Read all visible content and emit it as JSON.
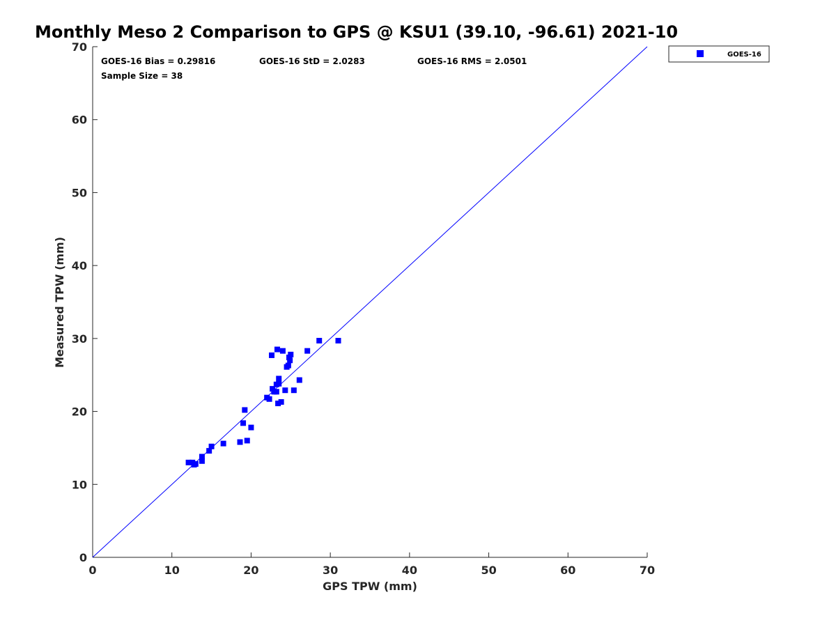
{
  "chart_data": {
    "type": "scatter",
    "title": "Monthly Meso 2 Comparison to GPS @ KSU1 (39.10, -96.61) 2021-10",
    "xlabel": "GPS TPW (mm)",
    "ylabel": "Measured TPW (mm)",
    "xlim": [
      0,
      70
    ],
    "ylim": [
      0,
      70
    ],
    "xticks": [
      0,
      10,
      20,
      30,
      40,
      50,
      60,
      70
    ],
    "yticks": [
      0,
      10,
      20,
      30,
      40,
      50,
      60,
      70
    ],
    "grid": false,
    "legend_position": "top-right outside plot",
    "stats": {
      "bias": "GOES-16 Bias = 0.29816",
      "std": "GOES-16 StD = 2.0283",
      "rms": "GOES-16 RMS = 2.0501",
      "sample": "Sample Size = 38"
    },
    "reference_line": {
      "x": [
        0,
        70
      ],
      "y": [
        0,
        70
      ],
      "color": "#0000ff"
    },
    "series": [
      {
        "name": "GOES-16",
        "marker": "square",
        "color": "#0000ff",
        "points": [
          [
            12.1,
            13.0
          ],
          [
            12.6,
            13.0
          ],
          [
            12.8,
            12.7
          ],
          [
            13.0,
            12.8
          ],
          [
            13.8,
            13.2
          ],
          [
            13.8,
            13.8
          ],
          [
            14.7,
            14.6
          ],
          [
            15.0,
            15.2
          ],
          [
            16.5,
            15.6
          ],
          [
            18.6,
            15.8
          ],
          [
            19.0,
            18.4
          ],
          [
            19.2,
            20.2
          ],
          [
            19.5,
            16.0
          ],
          [
            20.0,
            17.8
          ],
          [
            22.0,
            21.9
          ],
          [
            22.3,
            21.7
          ],
          [
            22.6,
            27.7
          ],
          [
            22.7,
            23.1
          ],
          [
            22.9,
            22.7
          ],
          [
            23.2,
            23.7
          ],
          [
            23.2,
            22.7
          ],
          [
            23.3,
            28.5
          ],
          [
            23.4,
            21.1
          ],
          [
            23.5,
            24.5
          ],
          [
            23.5,
            23.8
          ],
          [
            23.8,
            21.3
          ],
          [
            24.0,
            28.3
          ],
          [
            24.3,
            22.9
          ],
          [
            24.5,
            26.1
          ],
          [
            24.7,
            26.3
          ],
          [
            24.8,
            27.4
          ],
          [
            24.9,
            27.0
          ],
          [
            25.0,
            27.8
          ],
          [
            25.4,
            22.9
          ],
          [
            26.1,
            24.3
          ],
          [
            27.1,
            28.3
          ],
          [
            28.6,
            29.7
          ],
          [
            31.0,
            29.7
          ]
        ]
      }
    ]
  }
}
